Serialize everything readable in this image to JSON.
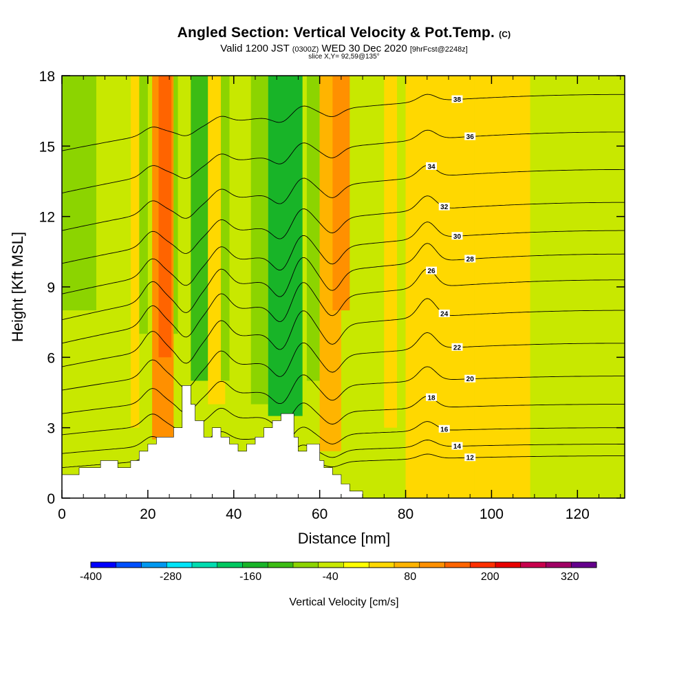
{
  "header": {
    "title": "Angled Section: Vertical Velocity & Pot.Temp.",
    "title_unit": "(C)",
    "valid_prefix": "Valid 1200 JST",
    "valid_utc": "(0300Z)",
    "valid_date": "WED 30 Dec 2020",
    "forecast": "[9hrFcst@2248z]",
    "slice": "slice X,Y= 92,59@135°"
  },
  "chart_data": {
    "type": "heatmap",
    "xlabel": "Distance [nm]",
    "ylabel": "Height [Kft MSL]",
    "xlim": [
      0,
      131
    ],
    "ylim": [
      0,
      18
    ],
    "xticks": [
      0,
      20,
      40,
      60,
      80,
      100,
      120
    ],
    "yticks": [
      0,
      3,
      6,
      9,
      12,
      15,
      18
    ],
    "background_color": "#c8e800",
    "terrain_profile": {
      "x": [
        0,
        4,
        4,
        9,
        9,
        13,
        13,
        16,
        16,
        18,
        18,
        20,
        20,
        22,
        22,
        26,
        26,
        28,
        28,
        30,
        30,
        31,
        31,
        33,
        33,
        35,
        35,
        37,
        37,
        39,
        39,
        41,
        41,
        43,
        43,
        45,
        45,
        47,
        47,
        49,
        49,
        51,
        51,
        54,
        54,
        55,
        55,
        57,
        57,
        60,
        60,
        61,
        61,
        63,
        63,
        65,
        65,
        67,
        67,
        70,
        70,
        80,
        80,
        131
      ],
      "y": [
        1.0,
        1.0,
        1.3,
        1.3,
        1.6,
        1.6,
        1.3,
        1.3,
        1.6,
        1.6,
        2.0,
        2.0,
        2.3,
        2.3,
        2.6,
        2.6,
        3.0,
        3.0,
        4.8,
        4.8,
        4.0,
        4.0,
        3.3,
        3.3,
        2.6,
        2.6,
        3.0,
        3.0,
        2.6,
        2.6,
        2.3,
        2.3,
        2.0,
        2.0,
        2.3,
        2.3,
        2.6,
        2.6,
        3.0,
        3.0,
        3.3,
        3.3,
        3.6,
        3.6,
        2.6,
        2.6,
        2.0,
        2.0,
        2.3,
        2.3,
        1.6,
        1.6,
        1.3,
        1.3,
        1.0,
        1.0,
        0.6,
        0.6,
        0.3,
        0.3,
        0.0,
        0.0,
        0.0,
        0.0
      ]
    },
    "velocity_bands": [
      {
        "x0": 0,
        "x1": 8,
        "ymin": 8,
        "value": -80
      },
      {
        "x0": 9,
        "x1": 11,
        "ymin": 4,
        "value": -40
      },
      {
        "x0": 14,
        "x1": 16,
        "ymin": 6,
        "value": -40
      },
      {
        "x0": 16,
        "x1": 18,
        "ymin": 3,
        "value": 40
      },
      {
        "x0": 18,
        "x1": 20,
        "ymin": 7,
        "value": -60
      },
      {
        "x0": 21,
        "x1": 26,
        "ymin": 2.5,
        "value": 120
      },
      {
        "x0": 22.5,
        "x1": 25.5,
        "ymin": 6,
        "value": 160
      },
      {
        "x0": 26,
        "x1": 27,
        "ymin": 7,
        "value": -60
      },
      {
        "x0": 30,
        "x1": 34,
        "ymin": 5,
        "value": -120
      },
      {
        "x0": 34,
        "x1": 38,
        "ymin": 4,
        "value": 40
      },
      {
        "x0": 37,
        "x1": 39,
        "ymin": 5,
        "value": -60
      },
      {
        "x0": 44,
        "x1": 48,
        "ymin": 4,
        "value": -80
      },
      {
        "x0": 48,
        "x1": 56,
        "ymin": 3.5,
        "value": -140
      },
      {
        "x0": 57,
        "x1": 60,
        "ymin": 5,
        "value": -80
      },
      {
        "x0": 60,
        "x1": 65,
        "ymin": 2,
        "value": 60
      },
      {
        "x0": 63,
        "x1": 67,
        "ymin": 8,
        "value": 120
      },
      {
        "x0": 69,
        "x1": 72,
        "ymin": 4,
        "value": -40
      },
      {
        "x0": 75,
        "x1": 78,
        "ymin": 3,
        "value": 40
      },
      {
        "x0": 80,
        "x1": 96,
        "ymin": 0,
        "value": 40
      },
      {
        "x0": 96,
        "x1": 109,
        "ymin": 0,
        "value": 20
      },
      {
        "x0": 109,
        "x1": 131,
        "ymin": 4.5,
        "value": -40
      },
      {
        "x0": 112,
        "x1": 131,
        "ymin": 0.5,
        "ymax": 3.2,
        "value": -40
      }
    ],
    "contours": [
      {
        "label": "12",
        "left": 0.8,
        "right": 1.8,
        "amp": 0.2
      },
      {
        "label": "14",
        "left": 1.3,
        "right": 2.3,
        "amp": 0.3
      },
      {
        "label": "16",
        "left": 1.9,
        "right": 3.0,
        "amp": 0.4
      },
      {
        "label": "18",
        "left": 2.7,
        "right": 4.0,
        "amp": 0.5
      },
      {
        "label": "20",
        "left": 3.6,
        "right": 5.2,
        "amp": 0.6
      },
      {
        "label": "22",
        "left": 4.6,
        "right": 6.6,
        "amp": 0.7
      },
      {
        "label": "24",
        "left": 5.6,
        "right": 8.0,
        "amp": 0.8
      },
      {
        "label": "26",
        "left": 6.6,
        "right": 9.3,
        "amp": 0.8
      },
      {
        "label": "28",
        "left": 7.6,
        "right": 10.4,
        "amp": 0.8
      },
      {
        "label": "30",
        "left": 8.7,
        "right": 11.4,
        "amp": 0.7
      },
      {
        "label": "32",
        "left": 10.0,
        "right": 12.6,
        "amp": 0.6
      },
      {
        "label": "34",
        "left": 11.4,
        "right": 14.0,
        "amp": 0.5
      },
      {
        "label": "36",
        "left": 13.0,
        "right": 15.6,
        "amp": 0.4
      },
      {
        "label": "38",
        "left": 14.8,
        "right": 17.2,
        "amp": 0.3
      }
    ],
    "colorbar": {
      "label": "Vertical Velocity [cm/s]",
      "min": -400,
      "max": 360,
      "tick_values": [
        -400,
        -280,
        -160,
        -40,
        80,
        200,
        320
      ],
      "tick_labels": [
        "-400",
        "-280",
        "-160",
        "-40",
        "80",
        "200",
        "320"
      ],
      "colors": [
        "#0000ff",
        "#0050ff",
        "#0098f0",
        "#00e4f8",
        "#00dcb0",
        "#00c860",
        "#18b428",
        "#3cbc14",
        "#8cd400",
        "#c8e800",
        "#ffff00",
        "#ffd800",
        "#ffb400",
        "#ff9000",
        "#ff6400",
        "#ff3000",
        "#e80000",
        "#c8004c",
        "#a00064",
        "#64008c"
      ]
    }
  }
}
